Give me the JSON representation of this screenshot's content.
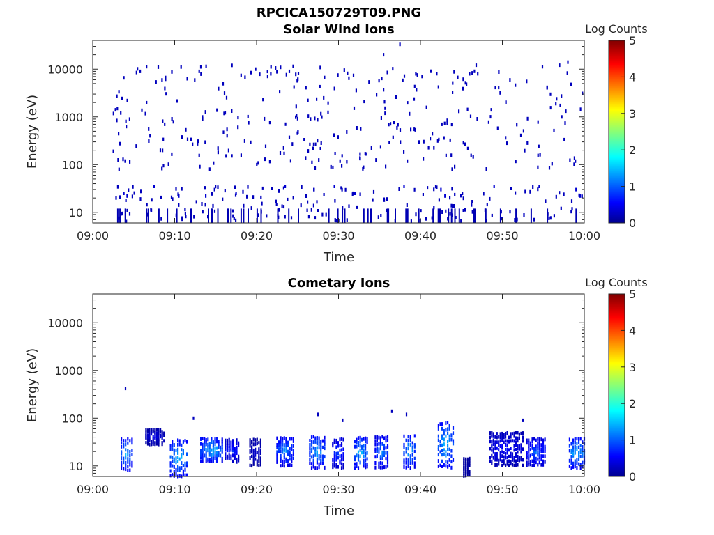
{
  "figure": {
    "filename_title": "RPCICA150729T09.PNG"
  },
  "chart_data": [
    {
      "type": "heatmap",
      "title": "Solar Wind Ions",
      "xlabel": "Time",
      "ylabel": "Energy (eV)",
      "x_range": [
        "09:00",
        "10:00"
      ],
      "x_ticks": [
        "09:00",
        "09:10",
        "09:20",
        "09:30",
        "09:40",
        "09:50",
        "10:00"
      ],
      "y_scale": "log",
      "y_range": [
        6,
        40000
      ],
      "y_ticks": [
        "10",
        "100",
        "1000",
        "10000"
      ],
      "colorbar": {
        "label": "Log Counts",
        "ticks": [
          "0",
          "1",
          "2",
          "3",
          "4",
          "5"
        ],
        "range": [
          0,
          5
        ],
        "colormap": "jet"
      },
      "description_points": [
        {
          "time_min": 3.0,
          "energy": 1500,
          "log_counts": 0.3
        },
        {
          "time_min": 3.8,
          "energy": 25,
          "log_counts": 0.4
        },
        {
          "time_min": 4.2,
          "energy": 22,
          "log_counts": 0.4
        },
        {
          "time_min": 4.5,
          "energy": 900,
          "log_counts": 0.3
        },
        {
          "time_min": 5.8,
          "energy": 9000,
          "log_counts": 0.3
        },
        {
          "time_min": 7.5,
          "energy": 35,
          "log_counts": 0.4
        },
        {
          "time_min": 8.0,
          "energy": 11000,
          "log_counts": 0.3
        },
        {
          "time_min": 10.5,
          "energy": 22,
          "log_counts": 0.4
        },
        {
          "time_min": 13.0,
          "energy": 9000,
          "log_counts": 0.3
        },
        {
          "time_min": 13.8,
          "energy": 22,
          "log_counts": 0.4
        },
        {
          "time_min": 17.0,
          "energy": 12000,
          "log_counts": 0.3
        },
        {
          "time_min": 17.5,
          "energy": 25,
          "log_counts": 0.4
        },
        {
          "time_min": 23.5,
          "energy": 35,
          "log_counts": 0.4
        },
        {
          "time_min": 24.0,
          "energy": 9000,
          "log_counts": 0.3
        },
        {
          "time_min": 27.0,
          "energy": 30,
          "log_counts": 0.4
        },
        {
          "time_min": 29.5,
          "energy": 35,
          "log_counts": 0.4
        },
        {
          "time_min": 32.0,
          "energy": 25,
          "log_counts": 0.4
        },
        {
          "time_min": 35.5,
          "energy": 20000,
          "log_counts": 0.3
        },
        {
          "time_min": 37.5,
          "energy": 33000,
          "log_counts": 0.3
        },
        {
          "time_min": 38.0,
          "energy": 35,
          "log_counts": 0.4
        },
        {
          "time_min": 42.5,
          "energy": 30,
          "log_counts": 0.4
        },
        {
          "time_min": 43.0,
          "energy": 22,
          "log_counts": 0.4
        },
        {
          "time_min": 47.0,
          "energy": 8000,
          "log_counts": 0.3
        },
        {
          "time_min": 49.0,
          "energy": 35,
          "log_counts": 0.4
        },
        {
          "time_min": 54.5,
          "energy": 35,
          "log_counts": 0.4
        },
        {
          "time_min": 58.0,
          "energy": 14000,
          "log_counts": 0.3
        },
        {
          "time_min": 59.0,
          "energy": 30,
          "log_counts": 0.4
        },
        {
          "time_min": 59.5,
          "energy": 22,
          "log_counts": 0.4
        }
      ]
    },
    {
      "type": "heatmap",
      "title": "Cometary Ions",
      "xlabel": "Time",
      "ylabel": "Energy (eV)",
      "x_range": [
        "09:00",
        "10:00"
      ],
      "x_ticks": [
        "09:00",
        "09:10",
        "09:20",
        "09:30",
        "09:40",
        "09:50",
        "10:00"
      ],
      "y_scale": "log",
      "y_range": [
        6,
        40000
      ],
      "y_ticks": [
        "10",
        "100",
        "1000",
        "10000"
      ],
      "colorbar": {
        "label": "Log Counts",
        "ticks": [
          "0",
          "1",
          "2",
          "3",
          "4",
          "5"
        ],
        "range": [
          0,
          5
        ],
        "colormap": "jet"
      },
      "bursts": [
        {
          "t0": 3.5,
          "t1": 4.8,
          "e_lo": 8,
          "e_hi": 40,
          "peak_log_counts": 1.8
        },
        {
          "t0": 6.5,
          "t1": 8.7,
          "e_lo": 28,
          "e_hi": 60,
          "peak_log_counts": 0.6
        },
        {
          "t0": 9.5,
          "t1": 11.5,
          "e_lo": 6,
          "e_hi": 38,
          "peak_log_counts": 1.9
        },
        {
          "t0": 13.2,
          "t1": 15.8,
          "e_lo": 12,
          "e_hi": 40,
          "peak_log_counts": 1.9
        },
        {
          "t0": 16.2,
          "t1": 17.8,
          "e_lo": 12,
          "e_hi": 38,
          "peak_log_counts": 1.0
        },
        {
          "t0": 19.2,
          "t1": 20.5,
          "e_lo": 10,
          "e_hi": 38,
          "peak_log_counts": 0.5
        },
        {
          "t0": 22.5,
          "t1": 24.5,
          "e_lo": 10,
          "e_hi": 42,
          "peak_log_counts": 1.6
        },
        {
          "t0": 26.5,
          "t1": 28.3,
          "e_lo": 9,
          "e_hi": 45,
          "peak_log_counts": 1.8
        },
        {
          "t0": 29.3,
          "t1": 30.6,
          "e_lo": 9,
          "e_hi": 40,
          "peak_log_counts": 1.2
        },
        {
          "t0": 32.0,
          "t1": 33.5,
          "e_lo": 9,
          "e_hi": 42,
          "peak_log_counts": 1.9
        },
        {
          "t0": 34.5,
          "t1": 36.0,
          "e_lo": 9,
          "e_hi": 45,
          "peak_log_counts": 1.5
        },
        {
          "t0": 38.0,
          "t1": 39.3,
          "e_lo": 9,
          "e_hi": 48,
          "peak_log_counts": 1.8
        },
        {
          "t0": 42.2,
          "t1": 44.0,
          "e_lo": 9,
          "e_hi": 90,
          "peak_log_counts": 2.0
        },
        {
          "t0": 45.3,
          "t1": 46.0,
          "e_lo": 6,
          "e_hi": 15,
          "peak_log_counts": 0.3
        },
        {
          "t0": 48.5,
          "t1": 52.5,
          "e_lo": 10,
          "e_hi": 55,
          "peak_log_counts": 0.8
        },
        {
          "t0": 53.0,
          "t1": 55.2,
          "e_lo": 10,
          "e_hi": 40,
          "peak_log_counts": 1.3
        },
        {
          "t0": 58.2,
          "t1": 60.0,
          "e_lo": 9,
          "e_hi": 40,
          "peak_log_counts": 1.9
        }
      ],
      "isolated_points": [
        {
          "time_min": 4.0,
          "energy": 420,
          "log_counts": 0.3
        },
        {
          "time_min": 12.3,
          "energy": 100,
          "log_counts": 0.3
        },
        {
          "time_min": 27.5,
          "energy": 120,
          "log_counts": 0.3
        },
        {
          "time_min": 30.5,
          "energy": 90,
          "log_counts": 0.3
        },
        {
          "time_min": 36.5,
          "energy": 140,
          "log_counts": 0.3
        },
        {
          "time_min": 38.3,
          "energy": 120,
          "log_counts": 0.3
        },
        {
          "time_min": 52.5,
          "energy": 90,
          "log_counts": 0.3
        }
      ]
    }
  ]
}
